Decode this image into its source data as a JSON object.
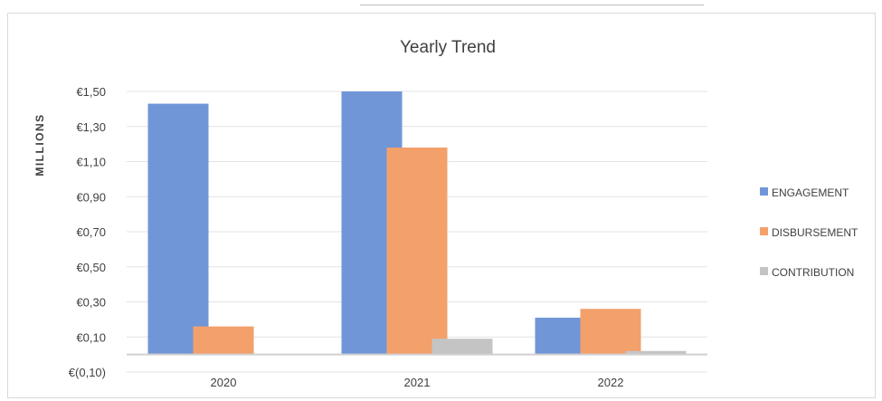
{
  "chart_data": {
    "type": "bar",
    "title": "Yearly Trend",
    "ylabel": "MILLIONS",
    "xlabel": "",
    "categories": [
      "2020",
      "2021",
      "2022"
    ],
    "series": [
      {
        "name": "ENGAGEMENT",
        "values": [
          1.43,
          1.5,
          0.21
        ],
        "color": "#7096d8"
      },
      {
        "name": "DISBURSEMENT",
        "values": [
          0.16,
          1.18,
          0.26
        ],
        "color": "#f3a06b"
      },
      {
        "name": "CONTRIBUTION",
        "values": [
          0.0,
          0.09,
          0.02
        ],
        "color": "#c4c4c4"
      }
    ],
    "yticks": [
      {
        "value": 1.5,
        "label": "€1,50"
      },
      {
        "value": 1.3,
        "label": "€1,30"
      },
      {
        "value": 1.1,
        "label": "€1,10"
      },
      {
        "value": 0.9,
        "label": "€0,90"
      },
      {
        "value": 0.7,
        "label": "€0,70"
      },
      {
        "value": 0.5,
        "label": "€0,50"
      },
      {
        "value": 0.3,
        "label": "€0,30"
      },
      {
        "value": 0.1,
        "label": "€0,10"
      },
      {
        "value": -0.1,
        "label": "€(0,10)"
      }
    ],
    "ylim": [
      -0.1,
      1.5
    ],
    "grid": true,
    "legend": "right"
  }
}
